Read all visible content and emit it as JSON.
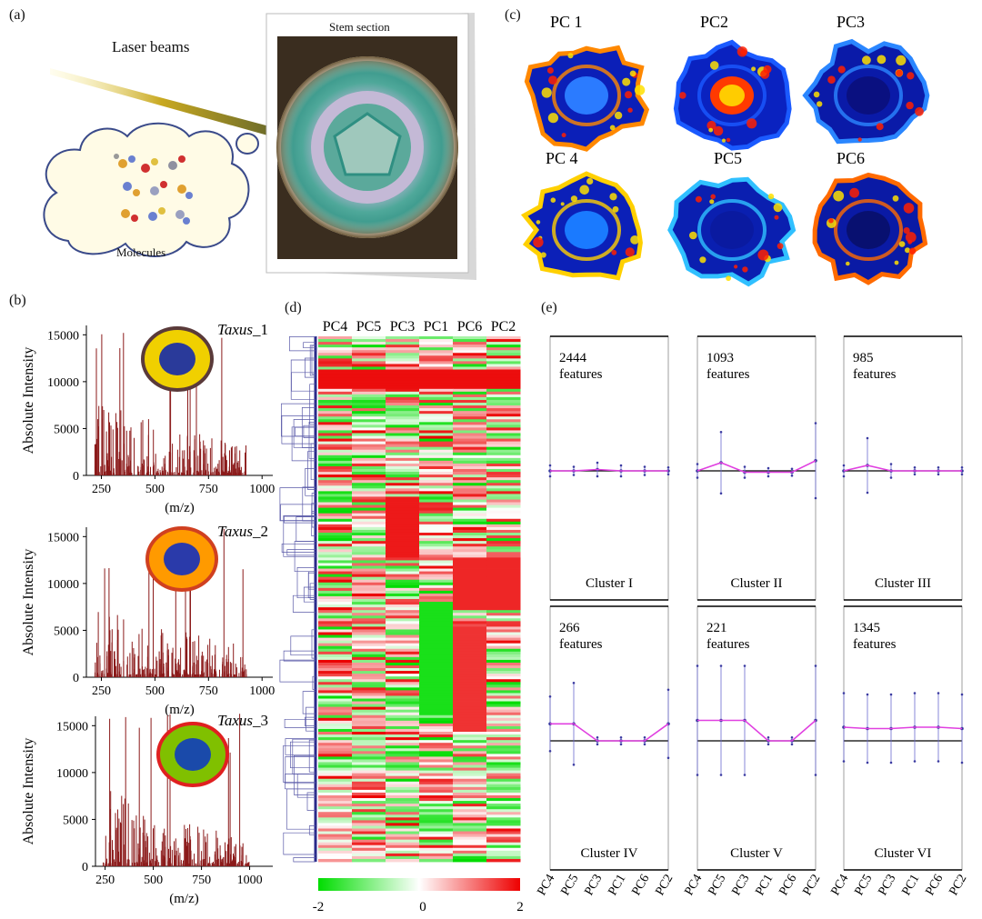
{
  "panel_labels": {
    "a": "(a)",
    "b": "(b)",
    "c": "(c)",
    "d": "(d)",
    "e": "(e)"
  },
  "panel_a": {
    "laser_label": "Laser beams",
    "stem_label": "Stem section",
    "molecules_label": "Molecules"
  },
  "panel_c": {
    "titles": [
      "PC 1",
      "PC2",
      "PC3",
      "PC 4",
      "PC5",
      "PC6"
    ]
  },
  "panel_b": {
    "ylabel": "Absolute Intensity",
    "xlabel": "(m/z)",
    "spectra": [
      {
        "name_italic": "Taxus",
        "name_suffix": "_1",
        "yticks": [
          "15000",
          "10000",
          "5000",
          "0"
        ],
        "xticks": [
          "250",
          "500",
          "750",
          "1000"
        ]
      },
      {
        "name_italic": "Taxus",
        "name_suffix": "_2",
        "yticks": [
          "15000",
          "10000",
          "5000",
          "0"
        ],
        "xticks": [
          "250",
          "500",
          "750",
          "1000"
        ]
      },
      {
        "name_italic": "Taxus",
        "name_suffix": "_3",
        "yticks": [
          "15000",
          "10000",
          "5000",
          "0"
        ],
        "xticks": [
          "250",
          "500",
          "750",
          "1000"
        ]
      }
    ]
  },
  "panel_d": {
    "columns": [
      "PC4",
      "PC5",
      "PC3",
      "PC1",
      "PC6",
      "PC2"
    ],
    "colorbar": {
      "min": "-2",
      "mid": "0",
      "max": "2",
      "colors": [
        "#00dd00",
        "#ffffff",
        "#ee0000"
      ]
    }
  },
  "panel_e": {
    "x_categories": [
      "PC4",
      "PC5",
      "PC3",
      "PC1",
      "PC6",
      "PC2"
    ],
    "line_color": "#e040e0",
    "clusters": [
      {
        "count": "2444",
        "unit": "features",
        "name": "Cluster I",
        "means": [
          0.0,
          0.0,
          0.02,
          0.0,
          0.0,
          0.0
        ],
        "err": [
          0.08,
          0.06,
          0.1,
          0.08,
          0.06,
          0.05
        ]
      },
      {
        "count": "1093",
        "unit": "features",
        "name": "Cluster II",
        "means": [
          0.0,
          0.12,
          -0.02,
          -0.02,
          -0.02,
          0.15
        ],
        "err": [
          0.1,
          0.45,
          0.08,
          0.06,
          0.05,
          0.55
        ]
      },
      {
        "count": "985",
        "unit": "features",
        "name": "Cluster III",
        "means": [
          0.0,
          0.08,
          0.0,
          0.0,
          0.0,
          0.0
        ],
        "err": [
          0.08,
          0.4,
          0.1,
          0.05,
          0.05,
          0.05
        ]
      },
      {
        "count": "266",
        "unit": "features",
        "name": "Cluster IV",
        "means": [
          0.25,
          0.25,
          0.0,
          0.0,
          0.0,
          0.25
        ],
        "err": [
          0.4,
          0.6,
          0.05,
          0.05,
          0.05,
          0.5
        ]
      },
      {
        "count": "221",
        "unit": "features",
        "name": "Cluster V",
        "means": [
          0.3,
          0.3,
          0.3,
          0.0,
          0.0,
          0.3
        ],
        "err": [
          0.8,
          0.8,
          0.8,
          0.05,
          0.05,
          0.8
        ]
      },
      {
        "count": "1345",
        "unit": "features",
        "name": "Cluster VI",
        "means": [
          0.2,
          0.18,
          0.18,
          0.2,
          0.2,
          0.18
        ],
        "err": [
          0.5,
          0.5,
          0.5,
          0.5,
          0.5,
          0.5
        ]
      }
    ]
  }
}
